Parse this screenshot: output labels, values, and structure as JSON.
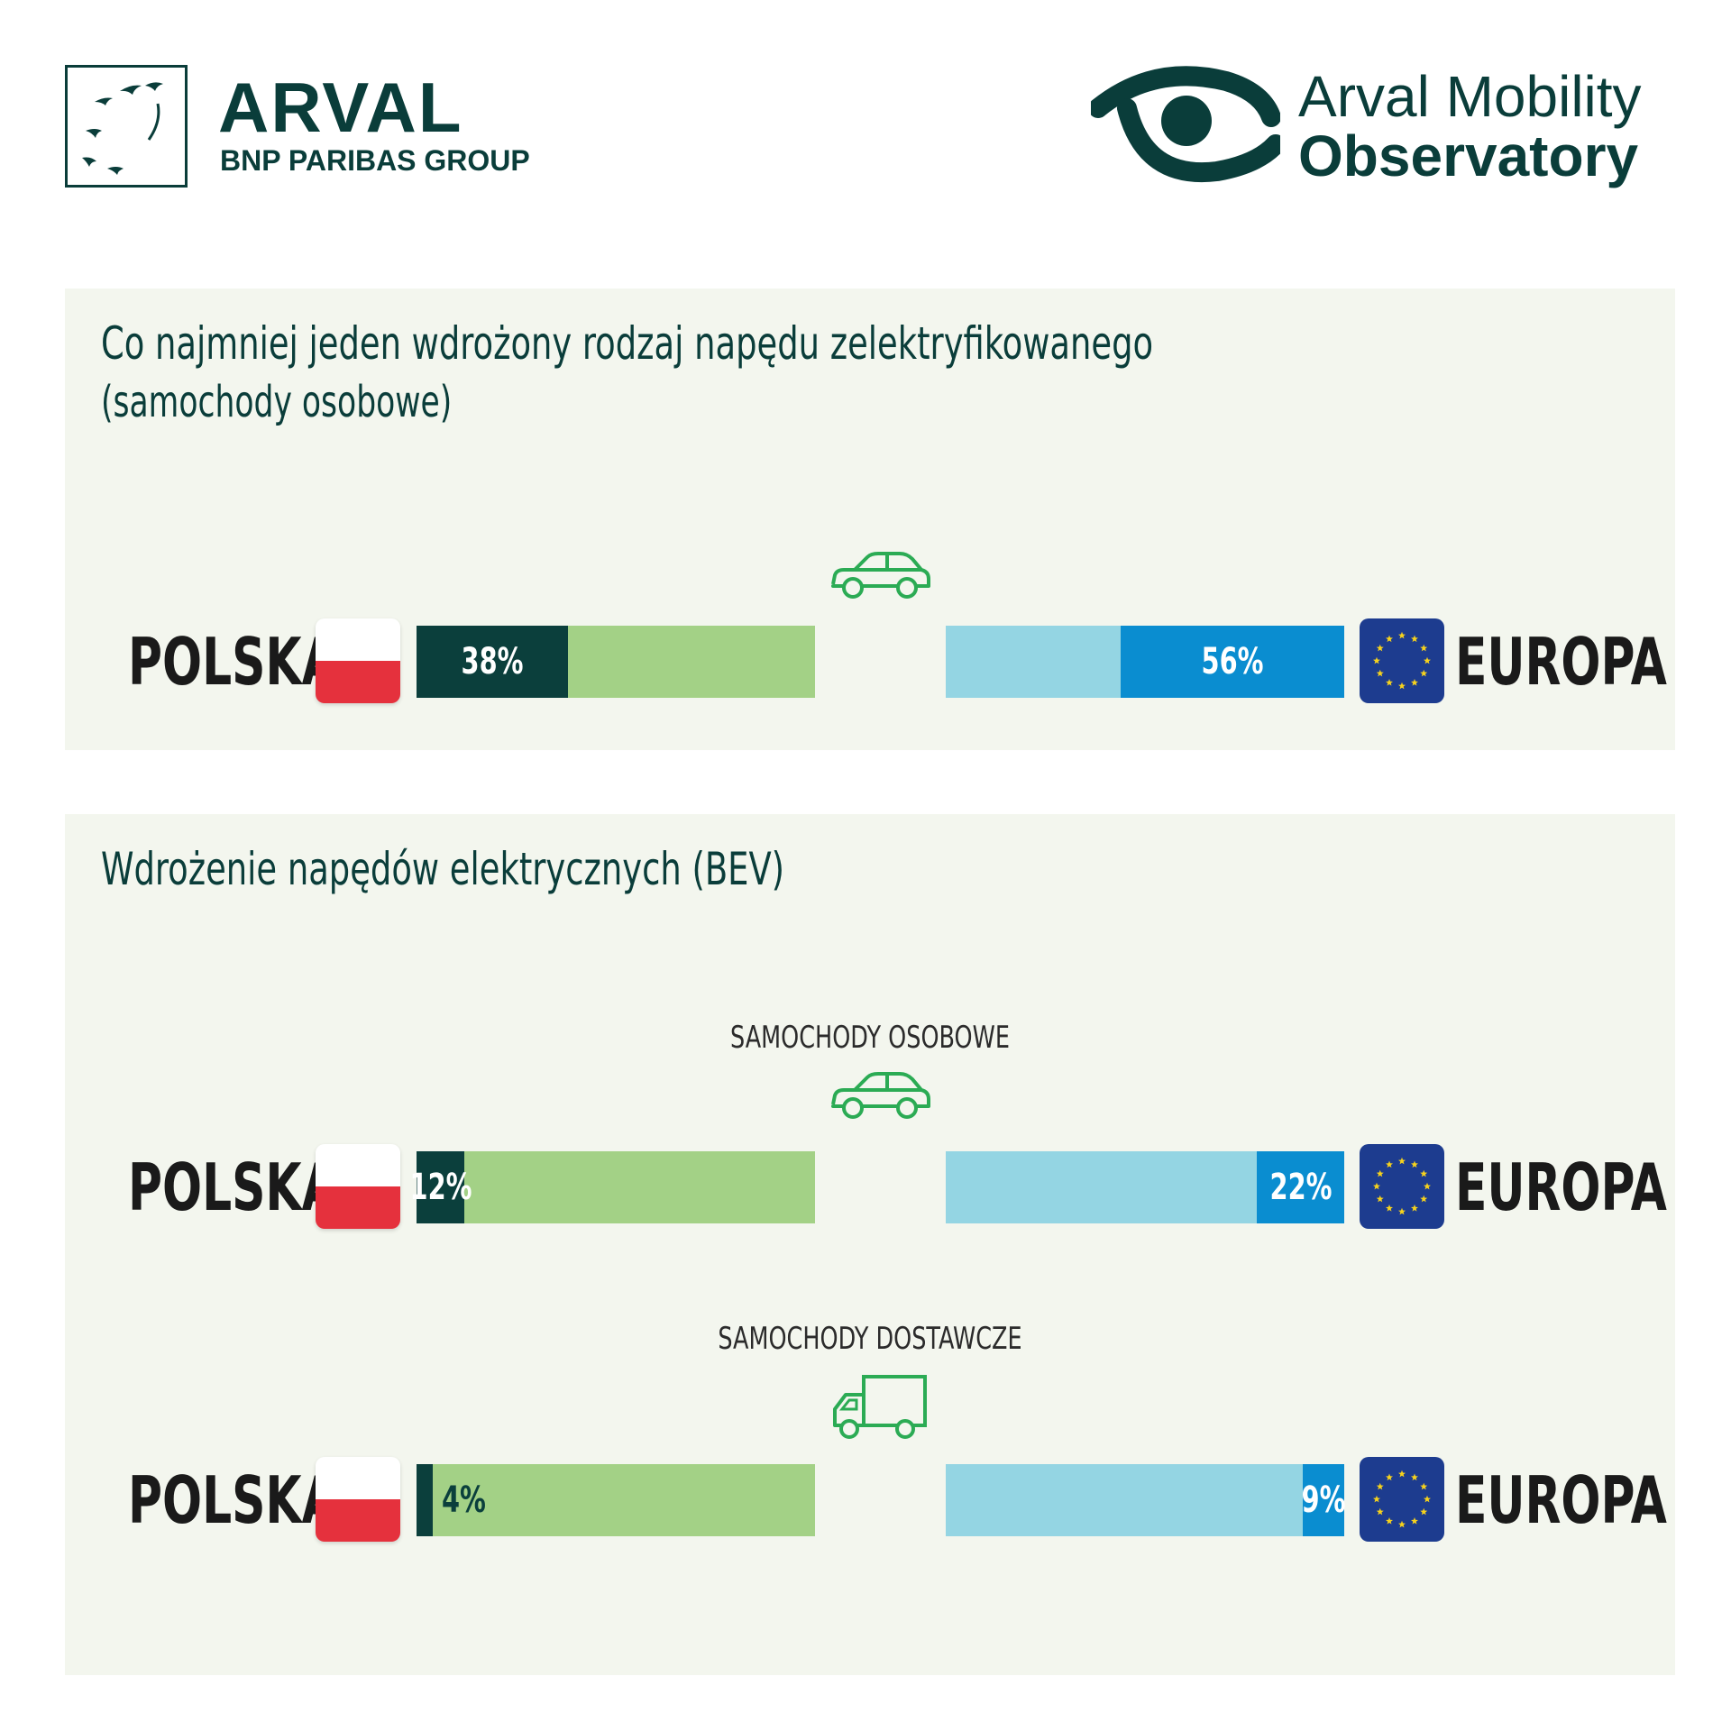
{
  "header": {
    "arval_name": "ARVAL",
    "arval_group": "BNP PARIBAS GROUP",
    "observatory_line1": "Arval Mobility",
    "observatory_line2": "Observatory"
  },
  "colors": {
    "dark_green": "#0b3f3c",
    "light_green": "#a3d186",
    "light_blue": "#94d5e3",
    "blue": "#0a8dd0",
    "panel_bg": "#f3f6ee",
    "eu_blue": "#1d3c8f",
    "eu_star": "#f6d21d",
    "pl_red": "#e5313d"
  },
  "chart_data": [
    {
      "type": "bar",
      "title": "Co najmniej jeden wdrożony rodzaj napędu zelektryfikowanego",
      "subtitle": "(samochody osobowe)",
      "groups": [
        {
          "label": "",
          "icon": "car-icon",
          "polska": {
            "name": "POLSKA",
            "value": 38,
            "label": "38%"
          },
          "europa": {
            "name": "EUROPA",
            "value": 56,
            "label": "56%"
          }
        }
      ]
    },
    {
      "type": "bar",
      "title": "Wdrożenie napędów elektrycznych (BEV)",
      "groups": [
        {
          "label": "SAMOCHODY OSOBOWE",
          "icon": "car-icon",
          "polska": {
            "name": "POLSKA",
            "value": 12,
            "label": "12%"
          },
          "europa": {
            "name": "EUROPA",
            "value": 22,
            "label": "22%"
          }
        },
        {
          "label": "SAMOCHODY DOSTAWCZE",
          "icon": "van-icon",
          "polska": {
            "name": "POLSKA",
            "value": 4,
            "label": "4%"
          },
          "europa": {
            "name": "EUROPA",
            "value": 9,
            "label": "9%"
          }
        }
      ]
    }
  ]
}
